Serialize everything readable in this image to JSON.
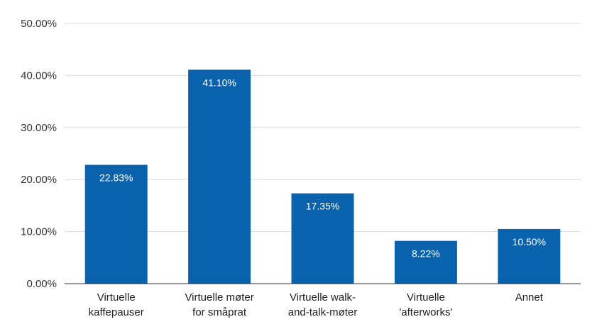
{
  "chart_data": {
    "type": "bar",
    "title": "",
    "xlabel": "",
    "ylabel": "",
    "ylim": [
      0,
      50
    ],
    "yticks": [
      "0.00%",
      "10.00%",
      "20.00%",
      "30.00%",
      "40.00%",
      "50.00%"
    ],
    "grid": true,
    "bar_color": "#0a62ad",
    "categories": [
      [
        "Virtuelle",
        "kaffepauser"
      ],
      [
        "Virtuelle møter",
        "for småprat"
      ],
      [
        "Virtuelle walk-",
        "and-talk-møter"
      ],
      [
        "Virtuelle",
        "'afterworks'"
      ],
      [
        "Annet"
      ]
    ],
    "values": [
      22.83,
      41.1,
      17.35,
      8.22,
      10.5
    ],
    "data_labels": [
      "22.83%",
      "41.10%",
      "17.35%",
      "8.22%",
      "10.50%"
    ]
  }
}
